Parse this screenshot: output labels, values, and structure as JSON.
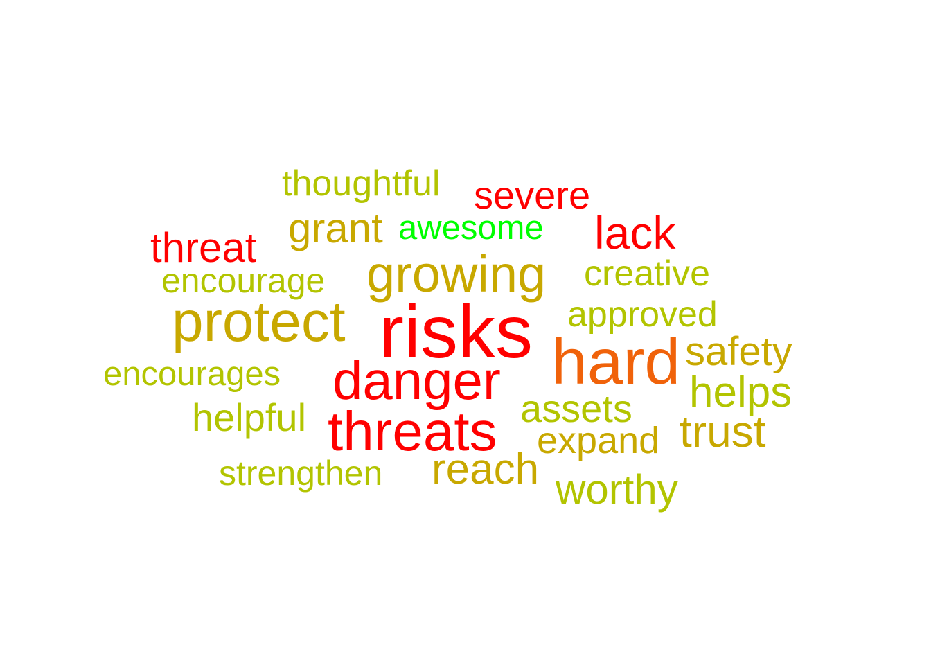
{
  "colors": {
    "red": "#ff0000",
    "orange": "#f0620a",
    "gold": "#c8a800",
    "olive": "#b2c400",
    "green": "#00ff00"
  },
  "words": [
    {
      "text": "thoughtful",
      "color": "#b2c400"
    },
    {
      "text": "severe",
      "color": "#ff0000"
    },
    {
      "text": "grant",
      "color": "#c8a800"
    },
    {
      "text": "awesome",
      "color": "#00ff00"
    },
    {
      "text": "lack",
      "color": "#ff0000"
    },
    {
      "text": "threat",
      "color": "#ff0000"
    },
    {
      "text": "growing",
      "color": "#c8a800"
    },
    {
      "text": "encourage",
      "color": "#b2c400"
    },
    {
      "text": "creative",
      "color": "#b2c400"
    },
    {
      "text": "protect",
      "color": "#c8a800"
    },
    {
      "text": "risks",
      "color": "#ff0000"
    },
    {
      "text": "approved",
      "color": "#b2c400"
    },
    {
      "text": "hard",
      "color": "#f0620a"
    },
    {
      "text": "safety",
      "color": "#c8a800"
    },
    {
      "text": "encourages",
      "color": "#b2c400"
    },
    {
      "text": "danger",
      "color": "#ff0000"
    },
    {
      "text": "helps",
      "color": "#b2c400"
    },
    {
      "text": "assets",
      "color": "#b2c400"
    },
    {
      "text": "helpful",
      "color": "#b2c400"
    },
    {
      "text": "threats",
      "color": "#ff0000"
    },
    {
      "text": "trust",
      "color": "#c8a800"
    },
    {
      "text": "expand",
      "color": "#c8a800"
    },
    {
      "text": "reach",
      "color": "#c8a800"
    },
    {
      "text": "strengthen",
      "color": "#b2c400"
    },
    {
      "text": "worthy",
      "color": "#b2c400"
    }
  ]
}
